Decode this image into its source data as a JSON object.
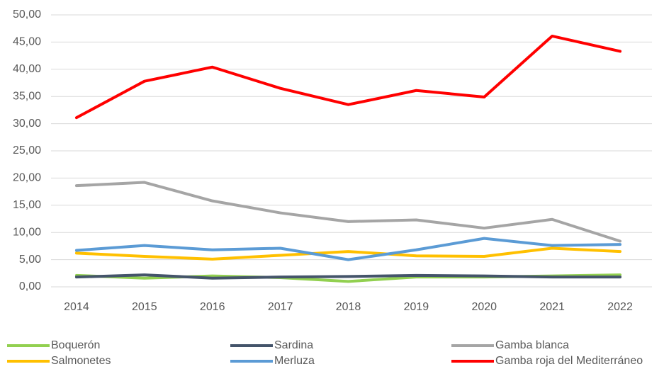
{
  "chart_data": {
    "type": "line",
    "categories": [
      "2014",
      "2015",
      "2016",
      "2017",
      "2018",
      "2019",
      "2020",
      "2021",
      "2022"
    ],
    "series": [
      {
        "name": "Boquerón",
        "color": "#92d050",
        "values": [
          2.1,
          1.6,
          2.0,
          1.7,
          1.0,
          1.8,
          1.8,
          2.0,
          2.2
        ]
      },
      {
        "name": "Sardina",
        "color": "#44546a",
        "values": [
          1.8,
          2.2,
          1.6,
          1.8,
          1.9,
          2.1,
          2.0,
          1.8,
          1.8
        ]
      },
      {
        "name": "Gamba blanca",
        "color": "#a5a5a5",
        "values": [
          18.6,
          19.2,
          15.8,
          13.6,
          12.0,
          12.3,
          10.8,
          12.4,
          8.4
        ]
      },
      {
        "name": "Salmonetes",
        "color": "#ffc000",
        "values": [
          6.2,
          5.6,
          5.1,
          5.8,
          6.5,
          5.7,
          5.6,
          7.1,
          6.5
        ]
      },
      {
        "name": "Merluza",
        "color": "#5b9bd5",
        "values": [
          6.7,
          7.6,
          6.8,
          7.1,
          5.0,
          6.8,
          8.9,
          7.6,
          7.8
        ]
      },
      {
        "name": "Gamba roja del Mediterráneo",
        "color": "#ff0000",
        "values": [
          31.1,
          37.8,
          40.4,
          36.5,
          33.5,
          36.1,
          34.9,
          46.1,
          43.3
        ]
      }
    ],
    "ylim": [
      0,
      50
    ],
    "yticks": [
      {
        "value": 0,
        "label": "0,00"
      },
      {
        "value": 5,
        "label": "5,00"
      },
      {
        "value": 10,
        "label": "10,00"
      },
      {
        "value": 15,
        "label": "15,00"
      },
      {
        "value": 20,
        "label": "20,00"
      },
      {
        "value": 25,
        "label": "25,00"
      },
      {
        "value": 30,
        "label": "30,00"
      },
      {
        "value": 35,
        "label": "35,00"
      },
      {
        "value": 40,
        "label": "40,00"
      },
      {
        "value": 45,
        "label": "45,00"
      },
      {
        "value": 50,
        "label": "50,00"
      }
    ],
    "grid": true
  }
}
